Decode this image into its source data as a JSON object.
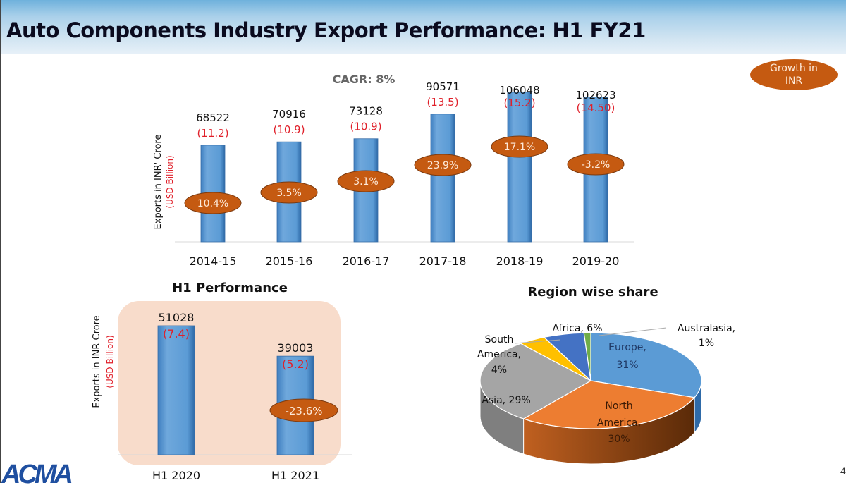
{
  "title": "Auto Components Industry Export Performance: H1 FY21",
  "logo": "ACMA",
  "page_number": "4",
  "colors": {
    "bar": "#5b9bd5",
    "growth_ellipse": "#c55a11",
    "usd_text": "#e0202a",
    "peach_panel": "#f8dccb"
  },
  "chart_data": [
    {
      "type": "bar",
      "title": "",
      "annotation": "CAGR: 8%",
      "legend_badge": "Growth in INR",
      "ylabel": "Exports in INR' Crore",
      "ylabel_secondary": "(USD Billion)",
      "categories": [
        "2014-15",
        "2015-16",
        "2016-17",
        "2017-18",
        "2018-19",
        "2019-20"
      ],
      "values": [
        68522,
        70916,
        73128,
        90571,
        106048,
        102623
      ],
      "usd_labels": [
        "(11.2)",
        "(10.9)",
        "(10.9)",
        "(13.5)",
        "(15.2)",
        "(14.50)"
      ],
      "growth_labels": [
        "10.4%",
        "3.5%",
        "3.1%",
        "23.9%",
        "17.1%",
        "-3.2%"
      ],
      "ylim": [
        0,
        110000
      ]
    },
    {
      "type": "bar",
      "title": "H1 Performance",
      "ylabel": "Exports in INR Crore",
      "ylabel_secondary": "(USD Billion)",
      "categories": [
        "H1 2020",
        "H1 2021"
      ],
      "values": [
        51028,
        39003
      ],
      "usd_labels": [
        "(7.4)",
        "(5.2)"
      ],
      "growth_labels": [
        "",
        "-23.6%"
      ],
      "ylim": [
        0,
        55000
      ]
    },
    {
      "type": "pie",
      "title": "Region wise share",
      "slices": [
        {
          "label": "Europe, 31%",
          "value": 31,
          "color": "#5b9bd5"
        },
        {
          "label": "North America, 30%",
          "value": 30,
          "color": "#ed7d31"
        },
        {
          "label": "Asia, 29%",
          "value": 29,
          "color": "#a5a5a5"
        },
        {
          "label": "South America, 4%",
          "value": 4,
          "color": "#ffc000"
        },
        {
          "label": "Africa, 6%",
          "value": 6,
          "color": "#4472c4"
        },
        {
          "label": "Australasia, 1%",
          "value": 1,
          "color": "#70ad47"
        }
      ]
    }
  ]
}
